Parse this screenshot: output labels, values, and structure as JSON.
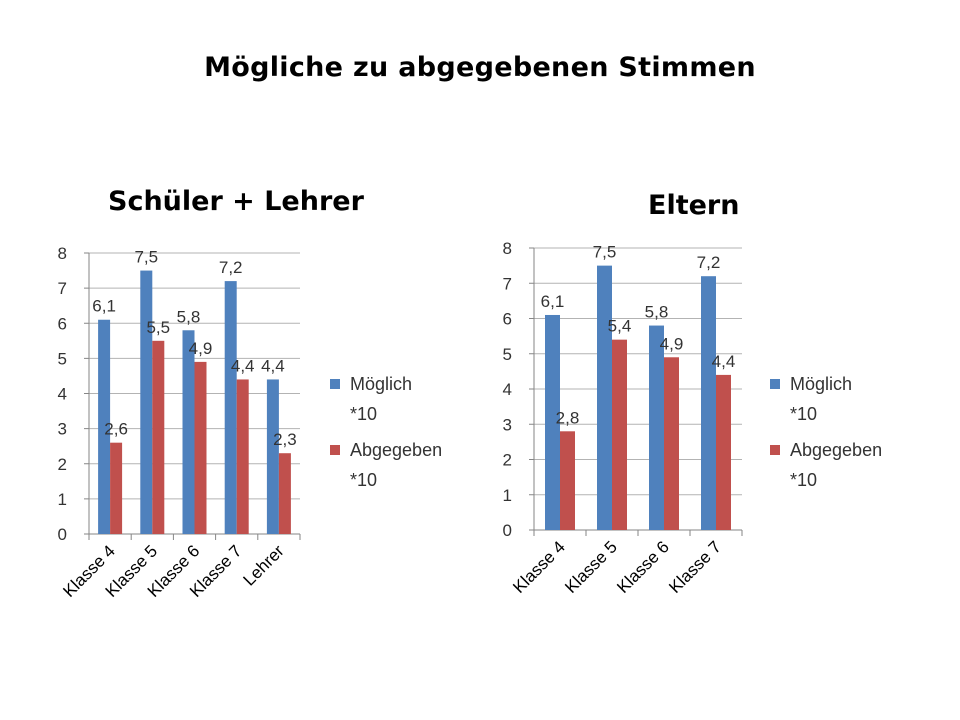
{
  "slide_title": "Mögliche zu abgegebenen Stimmen",
  "colors": {
    "series_1": "#4F81BD",
    "series_2": "#C0504D",
    "grid": "#B3B3B3",
    "axis": "#868686",
    "text": "#333333"
  },
  "chart_data": [
    {
      "type": "bar",
      "title": "Schüler + Lehrer",
      "categories": [
        "Klasse 4",
        "Klasse 5",
        "Klasse 6",
        "Klasse 7",
        "Lehrer"
      ],
      "series": [
        {
          "name": "Möglich *10",
          "values": [
            6.1,
            7.5,
            5.8,
            7.2,
            4.4
          ],
          "labels": [
            "6,1",
            "7,5",
            "5,8",
            "7,2",
            "4,4"
          ]
        },
        {
          "name": "Abgegeben *10",
          "values": [
            2.6,
            5.5,
            4.9,
            4.4,
            2.3
          ],
          "labels": [
            "2,6",
            "5,5",
            "4,9",
            "4,4",
            "2,3"
          ]
        }
      ],
      "yticks": [
        "0",
        "1",
        "2",
        "3",
        "4",
        "5",
        "6",
        "7",
        "8"
      ],
      "ylim": [
        0,
        8
      ],
      "grid": true,
      "legend_position": "right",
      "legend": [
        {
          "line1": "Möglich",
          "line2": "*10"
        },
        {
          "line1": "Abgegeben",
          "line2": "*10"
        }
      ]
    },
    {
      "type": "bar",
      "title": "Eltern",
      "categories": [
        "Klasse 4",
        "Klasse 5",
        "Klasse 6",
        "Klasse 7"
      ],
      "series": [
        {
          "name": "Möglich *10",
          "values": [
            6.1,
            7.5,
            5.8,
            7.2
          ],
          "labels": [
            "6,1",
            "7,5",
            "5,8",
            "7,2"
          ]
        },
        {
          "name": "Abgegeben *10",
          "values": [
            2.8,
            5.4,
            4.9,
            4.4
          ],
          "labels": [
            "2,8",
            "5,4",
            "4,9",
            "4,4"
          ]
        }
      ],
      "yticks": [
        "0",
        "1",
        "2",
        "3",
        "4",
        "5",
        "6",
        "7",
        "8"
      ],
      "ylim": [
        0,
        8
      ],
      "grid": true,
      "legend_position": "right",
      "legend": [
        {
          "line1": "Möglich",
          "line2": "*10"
        },
        {
          "line1": "Abgegeben",
          "line2": "*10"
        }
      ]
    }
  ]
}
